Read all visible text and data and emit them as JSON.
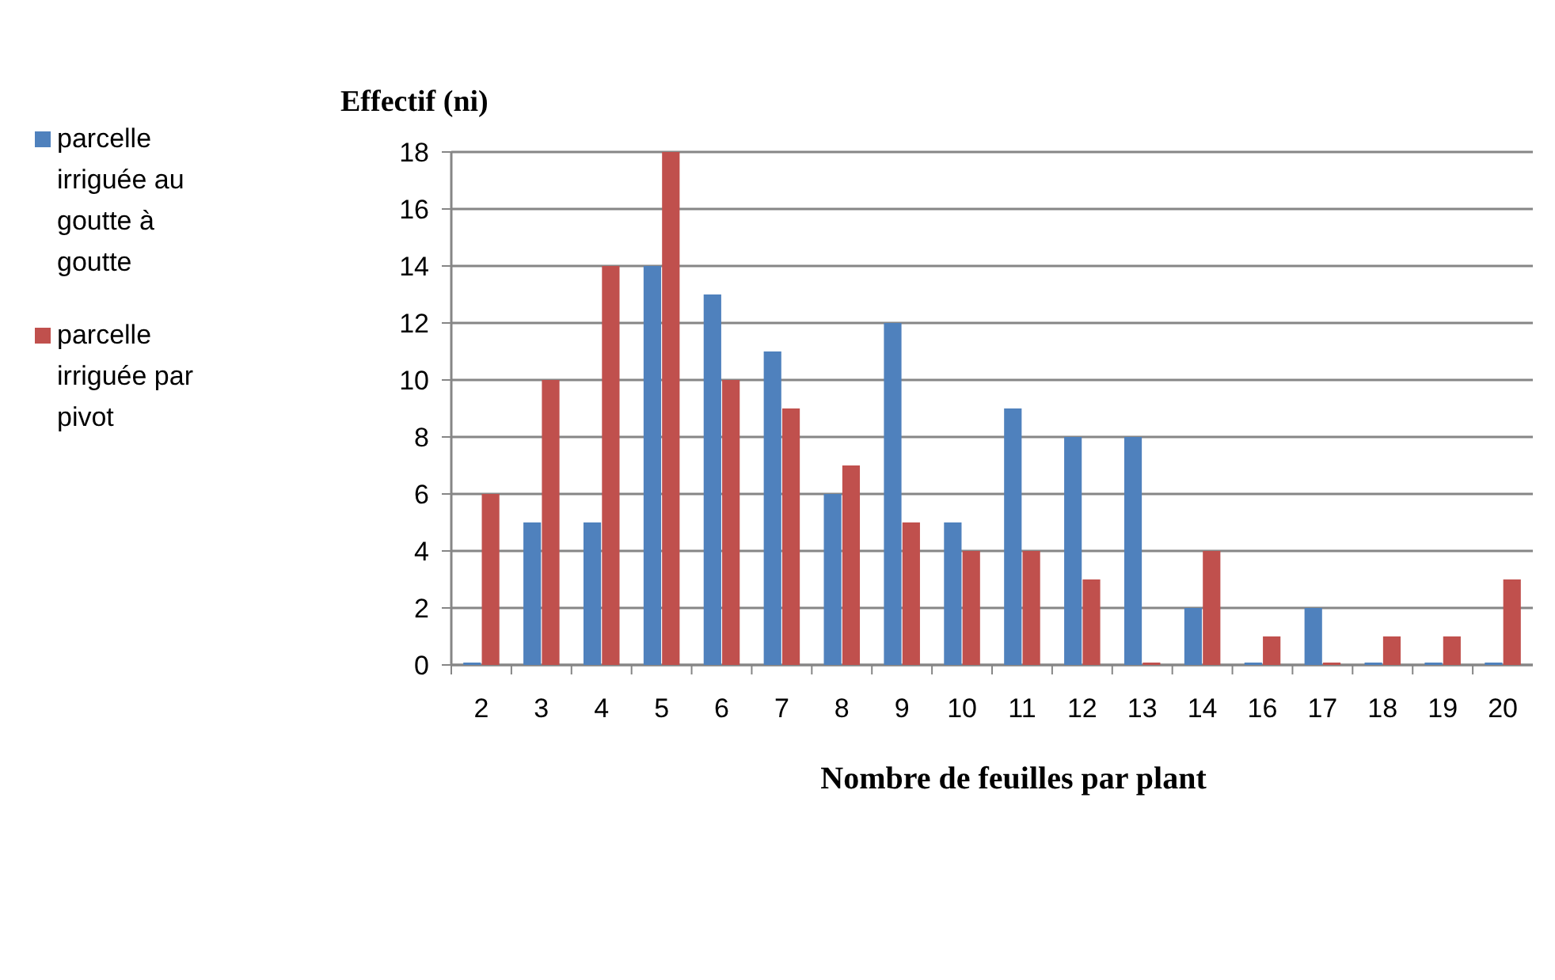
{
  "chart_data": {
    "type": "bar",
    "title": "Effectif (ni)",
    "xlabel": "Nombre de feuilles par plant",
    "categories": [
      "2",
      "3",
      "4",
      "5",
      "6",
      "7",
      "8",
      "9",
      "10",
      "11",
      "12",
      "13",
      "14",
      "16",
      "17",
      "18",
      "19",
      "20"
    ],
    "series": [
      {
        "name": "parcelle irriguée au goutte à goutte",
        "color": "#4f81bd",
        "values": [
          0,
          5,
          5,
          14,
          13,
          11,
          6,
          12,
          5,
          9,
          8,
          8,
          2,
          0,
          2,
          0,
          0,
          0
        ]
      },
      {
        "name": "parcelle irriguée par pivot",
        "color": "#c0504d",
        "values": [
          6,
          10,
          14,
          18,
          10,
          9,
          7,
          5,
          4,
          4,
          3,
          0,
          4,
          1,
          0,
          1,
          1,
          3
        ]
      }
    ],
    "ylim": [
      0,
      18
    ],
    "yticks": [
      0,
      2,
      4,
      6,
      8,
      10,
      12,
      14,
      16,
      18
    ],
    "grid": "y",
    "legend": "left"
  }
}
